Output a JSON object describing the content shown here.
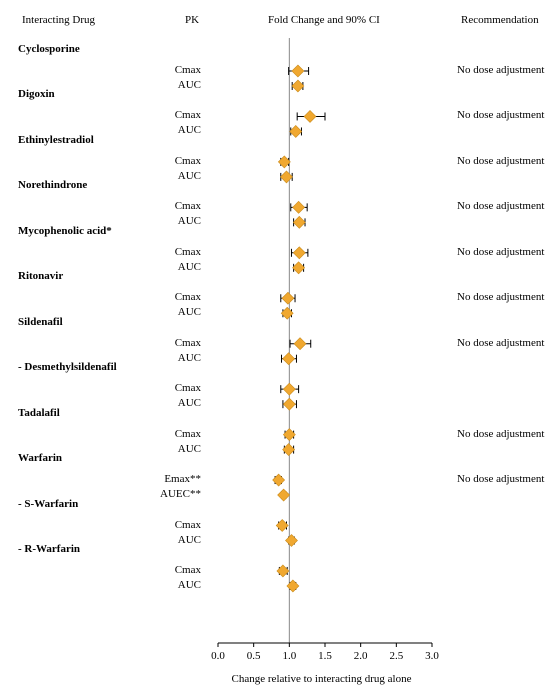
{
  "headers": {
    "drug": "Interacting Drug",
    "pk": "PK",
    "fold": "Fold Change and 90% CI",
    "rec": "Recommendation"
  },
  "colors": {
    "marker": "#f0a830",
    "marker_edge": "#c98a1a",
    "line": "#888888"
  },
  "chart_data": {
    "type": "forest",
    "xlabel": "Change relative to interacting drug alone",
    "xlim": [
      0.0,
      3.0
    ],
    "xticks": [
      "0.0",
      "0.5",
      "1.0",
      "1.5",
      "2.0",
      "2.5",
      "3.0"
    ],
    "reference_line": 1.0,
    "drugs": [
      {
        "name": "Cyclosporine",
        "rows": [
          {
            "pk": "Cmax",
            "est": 1.12,
            "lo": 0.99,
            "hi": 1.27,
            "rec": "No dose adjustment"
          },
          {
            "pk": "AUC",
            "est": 1.12,
            "lo": 1.04,
            "hi": 1.19,
            "rec": ""
          }
        ]
      },
      {
        "name": "Digoxin",
        "rows": [
          {
            "pk": "Cmax",
            "est": 1.29,
            "lo": 1.11,
            "hi": 1.5,
            "rec": "No dose adjustment"
          },
          {
            "pk": "AUC",
            "est": 1.09,
            "lo": 1.02,
            "hi": 1.17,
            "rec": ""
          }
        ]
      },
      {
        "name": "Ethinylestradiol",
        "rows": [
          {
            "pk": "Cmax",
            "est": 0.93,
            "lo": 0.88,
            "hi": 0.99,
            "rec": "No dose adjustment"
          },
          {
            "pk": "AUC",
            "est": 0.96,
            "lo": 0.88,
            "hi": 1.04,
            "rec": ""
          }
        ]
      },
      {
        "name": "Norethindrone",
        "rows": [
          {
            "pk": "Cmax",
            "est": 1.13,
            "lo": 1.02,
            "hi": 1.25,
            "rec": "No dose adjustment"
          },
          {
            "pk": "AUC",
            "est": 1.14,
            "lo": 1.06,
            "hi": 1.22,
            "rec": ""
          }
        ]
      },
      {
        "name": "Mycophenolic acid*",
        "rows": [
          {
            "pk": "Cmax",
            "est": 1.14,
            "lo": 1.03,
            "hi": 1.26,
            "rec": "No dose adjustment"
          },
          {
            "pk": "AUC",
            "est": 1.13,
            "lo": 1.06,
            "hi": 1.2,
            "rec": ""
          }
        ]
      },
      {
        "name": "Ritonavir",
        "rows": [
          {
            "pk": "Cmax",
            "est": 0.98,
            "lo": 0.88,
            "hi": 1.08,
            "rec": "No dose adjustment"
          },
          {
            "pk": "AUC",
            "est": 0.97,
            "lo": 0.91,
            "hi": 1.03,
            "rec": ""
          }
        ]
      },
      {
        "name": "Sildenafil",
        "rows": [
          {
            "pk": "Cmax",
            "est": 1.15,
            "lo": 1.01,
            "hi": 1.3,
            "rec": "No dose adjustment"
          },
          {
            "pk": "AUC",
            "est": 0.99,
            "lo": 0.89,
            "hi": 1.1,
            "rec": ""
          }
        ]
      },
      {
        "name": "-   Desmethylsildenafil",
        "rows": [
          {
            "pk": "Cmax",
            "est": 1.0,
            "lo": 0.88,
            "hi": 1.13,
            "rec": ""
          },
          {
            "pk": "AUC",
            "est": 1.0,
            "lo": 0.91,
            "hi": 1.1,
            "rec": ""
          }
        ]
      },
      {
        "name": "Tadalafil",
        "rows": [
          {
            "pk": "Cmax",
            "est": 1.0,
            "lo": 0.94,
            "hi": 1.06,
            "rec": "No dose adjustment"
          },
          {
            "pk": "AUC",
            "est": 0.99,
            "lo": 0.93,
            "hi": 1.06,
            "rec": ""
          }
        ]
      },
      {
        "name": "Warfarin",
        "rows": [
          {
            "pk": "Emax**",
            "est": 0.85,
            "lo": 0.8,
            "hi": 0.89,
            "rec": "No dose adjustment"
          },
          {
            "pk": "AUEC**",
            "est": 0.92,
            "lo": 0.89,
            "hi": 0.95,
            "rec": ""
          }
        ]
      },
      {
        "name": "-   S-Warfarin",
        "rows": [
          {
            "pk": "Cmax",
            "est": 0.9,
            "lo": 0.85,
            "hi": 0.96,
            "rec": ""
          },
          {
            "pk": "AUC",
            "est": 1.03,
            "lo": 0.99,
            "hi": 1.07,
            "rec": ""
          }
        ]
      },
      {
        "name": "-   R-Warfarin",
        "rows": [
          {
            "pk": "Cmax",
            "est": 0.91,
            "lo": 0.86,
            "hi": 0.97,
            "rec": ""
          },
          {
            "pk": "AUC",
            "est": 1.05,
            "lo": 1.01,
            "hi": 1.09,
            "rec": ""
          }
        ]
      }
    ]
  }
}
